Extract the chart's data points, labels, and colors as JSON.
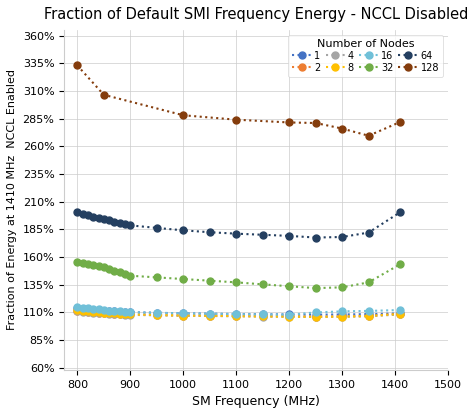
{
  "title": "Fraction of Default SMI Frequency Energy - NCCL Disabled",
  "xlabel": "SM Frequency (MHz)",
  "ylabel": "Fraction of Energy at 1410 MHz  NCCL Enabled",
  "xlim": [
    775,
    1500
  ],
  "ylim": [
    0.58,
    3.65
  ],
  "legend_title": "Number of Nodes",
  "xticks": [
    800,
    900,
    1000,
    1100,
    1200,
    1300,
    1400,
    1500
  ],
  "yticks": [
    0.6,
    0.85,
    1.1,
    1.35,
    1.6,
    1.85,
    2.1,
    2.35,
    2.6,
    2.85,
    3.1,
    3.35,
    3.6
  ],
  "ytick_labels": [
    "60%",
    "85%",
    "110%",
    "135%",
    "160%",
    "185%",
    "210%",
    "235%",
    "260%",
    "285%",
    "310%",
    "335%",
    "360%"
  ],
  "series": [
    {
      "label": "1",
      "color": "#4472C4",
      "x": [
        800,
        810,
        820,
        830,
        840,
        850,
        860,
        870,
        880,
        890,
        900,
        950,
        1000,
        1050,
        1100,
        1150,
        1200,
        1250,
        1300,
        1350,
        1410
      ],
      "y": [
        1.135,
        1.13,
        1.125,
        1.12,
        1.117,
        1.114,
        1.111,
        1.108,
        1.105,
        1.103,
        1.1,
        1.095,
        1.09,
        1.087,
        1.084,
        1.082,
        1.08,
        1.078,
        1.08,
        1.083,
        1.09
      ]
    },
    {
      "label": "2",
      "color": "#ED7D31",
      "x": [
        800,
        810,
        820,
        830,
        840,
        850,
        860,
        870,
        880,
        890,
        900,
        950,
        1000,
        1050,
        1100,
        1150,
        1200,
        1250,
        1300,
        1350,
        1410
      ],
      "y": [
        1.115,
        1.11,
        1.105,
        1.1,
        1.097,
        1.094,
        1.091,
        1.088,
        1.085,
        1.083,
        1.08,
        1.075,
        1.07,
        1.068,
        1.066,
        1.064,
        1.062,
        1.06,
        1.062,
        1.068,
        1.085
      ]
    },
    {
      "label": "4",
      "color": "#A5A5A5",
      "x": [
        800,
        810,
        820,
        830,
        840,
        850,
        860,
        870,
        880,
        890,
        900,
        950,
        1000,
        1050,
        1100,
        1150,
        1200,
        1250,
        1300,
        1350,
        1410
      ],
      "y": [
        1.11,
        1.105,
        1.1,
        1.095,
        1.092,
        1.089,
        1.086,
        1.083,
        1.08,
        1.078,
        1.076,
        1.072,
        1.068,
        1.066,
        1.063,
        1.061,
        1.059,
        1.057,
        1.059,
        1.063,
        1.08
      ]
    },
    {
      "label": "8",
      "color": "#FFC000",
      "x": [
        800,
        810,
        820,
        830,
        840,
        850,
        860,
        870,
        880,
        890,
        900,
        950,
        1000,
        1050,
        1100,
        1150,
        1200,
        1250,
        1300,
        1350,
        1410
      ],
      "y": [
        1.12,
        1.114,
        1.108,
        1.103,
        1.099,
        1.095,
        1.092,
        1.089,
        1.086,
        1.083,
        1.08,
        1.075,
        1.07,
        1.068,
        1.065,
        1.062,
        1.06,
        1.058,
        1.06,
        1.065,
        1.085
      ]
    },
    {
      "label": "16",
      "color": "#70C0D8",
      "x": [
        800,
        810,
        820,
        830,
        840,
        850,
        860,
        870,
        880,
        890,
        900,
        950,
        1000,
        1050,
        1100,
        1150,
        1200,
        1250,
        1300,
        1350,
        1410
      ],
      "y": [
        1.145,
        1.14,
        1.135,
        1.13,
        1.125,
        1.12,
        1.115,
        1.112,
        1.108,
        1.104,
        1.1,
        1.095,
        1.09,
        1.087,
        1.083,
        1.08,
        1.078,
        1.098,
        1.108,
        1.112,
        1.12
      ]
    },
    {
      "label": "32",
      "color": "#70AD47",
      "x": [
        800,
        810,
        820,
        830,
        840,
        850,
        860,
        870,
        880,
        890,
        900,
        950,
        1000,
        1050,
        1100,
        1150,
        1200,
        1250,
        1300,
        1350,
        1410
      ],
      "y": [
        1.555,
        1.545,
        1.535,
        1.525,
        1.515,
        1.505,
        1.49,
        1.475,
        1.46,
        1.445,
        1.43,
        1.415,
        1.4,
        1.385,
        1.37,
        1.352,
        1.335,
        1.318,
        1.325,
        1.37,
        1.535
      ]
    },
    {
      "label": "64",
      "color": "#243F60",
      "x": [
        800,
        810,
        820,
        830,
        840,
        850,
        860,
        870,
        880,
        890,
        900,
        950,
        1000,
        1050,
        1100,
        1150,
        1200,
        1250,
        1300,
        1350,
        1410
      ],
      "y": [
        2.005,
        1.99,
        1.975,
        1.965,
        1.955,
        1.945,
        1.93,
        1.915,
        1.905,
        1.895,
        1.885,
        1.862,
        1.84,
        1.823,
        1.81,
        1.8,
        1.79,
        1.775,
        1.78,
        1.82,
        2.005
      ]
    },
    {
      "label": "128",
      "color": "#843C0C",
      "x": [
        800,
        850,
        1000,
        1100,
        1200,
        1250,
        1300,
        1350,
        1410
      ],
      "y": [
        3.33,
        3.065,
        2.88,
        2.84,
        2.815,
        2.81,
        2.76,
        2.695,
        2.82
      ]
    }
  ]
}
